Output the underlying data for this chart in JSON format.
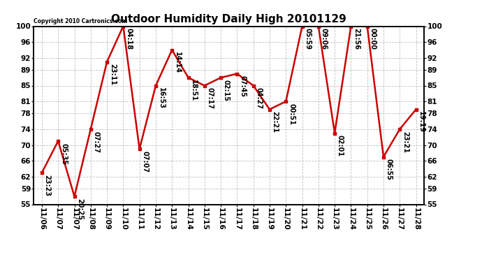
{
  "title": "Outdoor Humidity Daily High 20101129",
  "copyright": "Copyright 2010 Cartronics.com",
  "x_ticks": [
    "11/06",
    "11/07",
    "11/07",
    "11/08",
    "11/09",
    "11/10",
    "11/11",
    "11/12",
    "11/13",
    "11/14",
    "11/15",
    "11/16",
    "11/17",
    "11/18",
    "11/19",
    "11/20",
    "11/21",
    "11/22",
    "11/23",
    "11/24",
    "11/25",
    "11/26",
    "11/27",
    "11/28"
  ],
  "y_values": [
    63,
    71,
    57,
    74,
    91,
    100,
    69,
    85,
    94,
    87,
    85,
    87,
    88,
    85,
    79,
    81,
    100,
    100,
    73,
    100,
    100,
    67,
    74,
    79
  ],
  "time_labels": [
    "23:23",
    "05:35",
    "20:25",
    "07:27",
    "23:11",
    "04:18",
    "07:07",
    "16:53",
    "14:14",
    "18:51",
    "07:17",
    "02:15",
    "07:45",
    "04:27",
    "22:21",
    "00:51",
    "05:59",
    "09:06",
    "02:01",
    "21:56",
    "00:00",
    "06:55",
    "23:21",
    "19:19"
  ],
  "x_positions": [
    0,
    1,
    2,
    3,
    4,
    5,
    6,
    7,
    8,
    9,
    10,
    11,
    12,
    13,
    14,
    15,
    16,
    17,
    18,
    19,
    20,
    21,
    22,
    23
  ],
  "ylim": [
    55,
    100
  ],
  "yticks": [
    55,
    59,
    62,
    66,
    70,
    74,
    78,
    81,
    85,
    89,
    92,
    96,
    100
  ],
  "line_color": "#cc0000",
  "marker_color": "#cc0000",
  "bg_color": "#ffffff",
  "grid_color": "#c0c0c0",
  "title_fontsize": 11,
  "label_fontsize": 7,
  "tick_fontsize": 7.5
}
